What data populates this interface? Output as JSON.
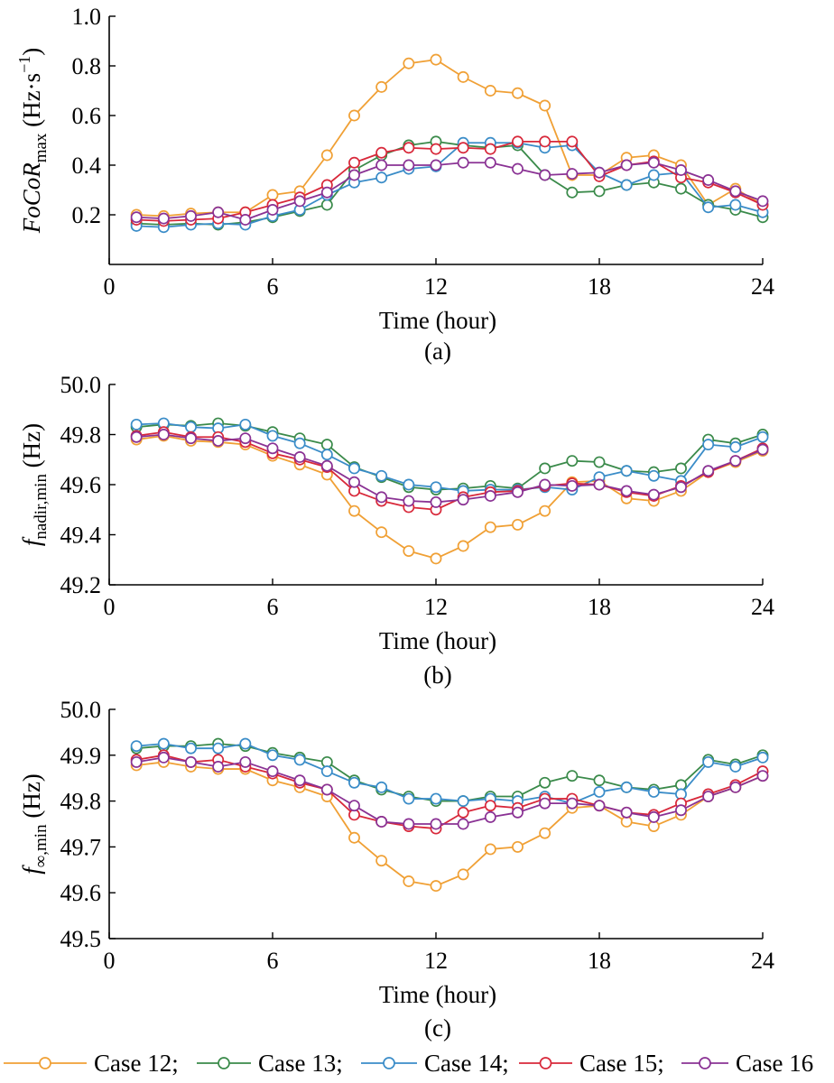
{
  "chart_data": [
    {
      "type": "line",
      "caption": "(a)",
      "xlabel": "Time (hour)",
      "ylabel": {
        "main": "FoCoR",
        "sub": "max",
        "unit_open": " (Hz·s",
        "unit_sup": "−1",
        "unit_close": ")"
      },
      "xlim": [
        0,
        24
      ],
      "ylim": [
        0.0,
        1.0
      ],
      "xticks": [
        "0",
        "6",
        "12",
        "18",
        "24"
      ],
      "yticks": [
        "0.2",
        "0.4",
        "0.6",
        "0.8",
        "1.0"
      ],
      "x": [
        1,
        2,
        3,
        4,
        5,
        6,
        7,
        8,
        9,
        10,
        11,
        12,
        13,
        14,
        15,
        16,
        17,
        18,
        19,
        20,
        21,
        22,
        23,
        24
      ],
      "series": [
        {
          "name": "Case 12",
          "values": [
            0.2,
            0.195,
            0.205,
            0.21,
            0.21,
            0.28,
            0.295,
            0.44,
            0.6,
            0.715,
            0.81,
            0.825,
            0.755,
            0.7,
            0.69,
            0.64,
            0.36,
            0.36,
            0.43,
            0.44,
            0.4,
            0.24,
            0.305,
            0.24
          ]
        },
        {
          "name": "Case 13",
          "values": [
            0.165,
            0.16,
            0.165,
            0.16,
            0.17,
            0.19,
            0.215,
            0.24,
            0.38,
            0.44,
            0.48,
            0.495,
            0.48,
            0.47,
            0.48,
            0.36,
            0.29,
            0.295,
            0.32,
            0.33,
            0.305,
            0.24,
            0.22,
            0.19
          ]
        },
        {
          "name": "Case 14",
          "values": [
            0.155,
            0.15,
            0.16,
            0.165,
            0.16,
            0.195,
            0.22,
            0.28,
            0.33,
            0.35,
            0.385,
            0.395,
            0.49,
            0.49,
            0.49,
            0.47,
            0.48,
            0.37,
            0.32,
            0.36,
            0.37,
            0.23,
            0.24,
            0.21
          ]
        },
        {
          "name": "Case 15",
          "values": [
            0.18,
            0.175,
            0.18,
            0.185,
            0.21,
            0.24,
            0.27,
            0.32,
            0.41,
            0.45,
            0.47,
            0.465,
            0.47,
            0.465,
            0.495,
            0.495,
            0.495,
            0.355,
            0.4,
            0.415,
            0.35,
            0.33,
            0.29,
            0.24
          ]
        },
        {
          "name": "Case 16",
          "values": [
            0.19,
            0.185,
            0.195,
            0.21,
            0.18,
            0.22,
            0.255,
            0.29,
            0.36,
            0.4,
            0.4,
            0.4,
            0.41,
            0.41,
            0.385,
            0.36,
            0.365,
            0.37,
            0.4,
            0.41,
            0.38,
            0.34,
            0.295,
            0.255
          ]
        }
      ]
    },
    {
      "type": "line",
      "caption": "(b)",
      "xlabel": "Time (hour)",
      "ylabel": {
        "main": "f",
        "sub": "nadir,min",
        "unit_open": " (Hz)",
        "unit_sup": "",
        "unit_close": ""
      },
      "xlim": [
        0,
        24
      ],
      "ylim": [
        49.2,
        50.0
      ],
      "xticks": [
        "0",
        "6",
        "12",
        "18",
        "24"
      ],
      "yticks": [
        "49.2",
        "49.4",
        "49.6",
        "49.8",
        "50.0"
      ],
      "x": [
        1,
        2,
        3,
        4,
        5,
        6,
        7,
        8,
        9,
        10,
        11,
        12,
        13,
        14,
        15,
        16,
        17,
        18,
        19,
        20,
        21,
        22,
        23,
        24
      ],
      "series": [
        {
          "name": "Case 12",
          "values": [
            49.78,
            49.795,
            49.775,
            49.77,
            49.76,
            49.715,
            49.68,
            49.64,
            49.495,
            49.41,
            49.335,
            49.305,
            49.355,
            49.43,
            49.44,
            49.495,
            49.61,
            49.615,
            49.545,
            49.535,
            49.575,
            49.65,
            49.69,
            49.735
          ]
        },
        {
          "name": "Case 13",
          "values": [
            49.83,
            49.84,
            49.835,
            49.845,
            49.835,
            49.81,
            49.785,
            49.76,
            49.67,
            49.63,
            49.59,
            49.58,
            49.585,
            49.595,
            49.585,
            49.665,
            49.695,
            49.69,
            49.655,
            49.65,
            49.665,
            49.78,
            49.765,
            49.8
          ]
        },
        {
          "name": "Case 14",
          "values": [
            49.84,
            49.845,
            49.83,
            49.825,
            49.84,
            49.795,
            49.765,
            49.72,
            49.665,
            49.635,
            49.6,
            49.59,
            49.575,
            49.58,
            49.58,
            49.59,
            49.58,
            49.63,
            49.655,
            49.635,
            49.615,
            49.76,
            49.75,
            49.79
          ]
        },
        {
          "name": "Case 15",
          "values": [
            49.795,
            49.81,
            49.79,
            49.79,
            49.77,
            49.725,
            49.7,
            49.67,
            49.575,
            49.535,
            49.51,
            49.5,
            49.55,
            49.57,
            49.575,
            49.595,
            49.605,
            49.6,
            49.57,
            49.555,
            49.595,
            49.65,
            49.695,
            49.745
          ]
        },
        {
          "name": "Case 16",
          "values": [
            49.79,
            49.8,
            49.785,
            49.775,
            49.785,
            49.745,
            49.71,
            49.675,
            49.61,
            49.55,
            49.535,
            49.53,
            49.54,
            49.555,
            49.57,
            49.6,
            49.595,
            49.6,
            49.575,
            49.56,
            49.59,
            49.655,
            49.695,
            49.74
          ]
        }
      ]
    },
    {
      "type": "line",
      "caption": "(c)",
      "xlabel": "Time (hour)",
      "ylabel": {
        "main": "f",
        "sub": "∞,min",
        "unit_open": " (Hz)",
        "unit_sup": "",
        "unit_close": ""
      },
      "xlim": [
        0,
        24
      ],
      "ylim": [
        49.5,
        50.0
      ],
      "xticks": [
        "0",
        "6",
        "12",
        "18",
        "24"
      ],
      "yticks": [
        "49.5",
        "49.6",
        "49.7",
        "49.8",
        "49.9",
        "50.0"
      ],
      "x": [
        1,
        2,
        3,
        4,
        5,
        6,
        7,
        8,
        9,
        10,
        11,
        12,
        13,
        14,
        15,
        16,
        17,
        18,
        19,
        20,
        21,
        22,
        23,
        24
      ],
      "series": [
        {
          "name": "Case 12",
          "values": [
            49.878,
            49.885,
            49.875,
            49.87,
            49.87,
            49.845,
            49.83,
            49.81,
            49.72,
            49.67,
            49.625,
            49.615,
            49.64,
            49.695,
            49.7,
            49.73,
            49.785,
            49.79,
            49.755,
            49.745,
            49.77,
            49.81,
            49.83,
            49.855
          ]
        },
        {
          "name": "Case 13",
          "values": [
            49.915,
            49.92,
            49.92,
            49.925,
            49.92,
            49.905,
            49.895,
            49.885,
            49.845,
            49.825,
            49.81,
            49.8,
            49.8,
            49.81,
            49.81,
            49.84,
            49.855,
            49.845,
            49.83,
            49.825,
            49.835,
            49.89,
            49.88,
            49.9
          ]
        },
        {
          "name": "Case 14",
          "values": [
            49.92,
            49.925,
            49.915,
            49.915,
            49.925,
            49.9,
            49.89,
            49.865,
            49.84,
            49.83,
            49.805,
            49.805,
            49.8,
            49.805,
            49.8,
            49.81,
            49.795,
            49.82,
            49.83,
            49.82,
            49.815,
            49.885,
            49.875,
            49.895
          ]
        },
        {
          "name": "Case 15",
          "values": [
            49.89,
            49.9,
            49.885,
            49.89,
            49.875,
            49.86,
            49.84,
            49.825,
            49.77,
            49.755,
            49.745,
            49.74,
            49.775,
            49.79,
            49.785,
            49.805,
            49.805,
            49.79,
            49.775,
            49.77,
            49.795,
            49.815,
            49.835,
            49.865
          ]
        },
        {
          "name": "Case 16",
          "values": [
            49.885,
            49.895,
            49.885,
            49.875,
            49.885,
            49.865,
            49.845,
            49.825,
            49.79,
            49.755,
            49.75,
            49.75,
            49.75,
            49.765,
            49.775,
            49.795,
            49.795,
            49.79,
            49.775,
            49.765,
            49.78,
            49.81,
            49.83,
            49.855
          ]
        }
      ]
    }
  ],
  "legend": [
    {
      "label": "Case 12;",
      "color": "#F0A035"
    },
    {
      "label": "Case 13;",
      "color": "#3A8A4A"
    },
    {
      "label": "Case 14;",
      "color": "#3A8CC8"
    },
    {
      "label": "Case 15;",
      "color": "#D8283A"
    },
    {
      "label": "Case 16",
      "color": "#8A3294"
    }
  ],
  "series_colors": [
    "#F0A035",
    "#3A8A4A",
    "#3A8CC8",
    "#D8283A",
    "#8A3294"
  ]
}
